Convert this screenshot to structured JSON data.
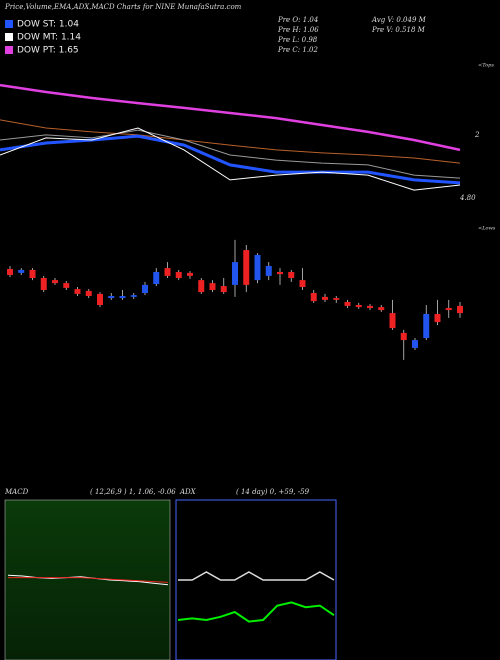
{
  "header": {
    "title": "Price,Volume,EMA,ADX,MACD Charts for NINE MunafaSutra.com",
    "info": [
      "Pre O: 1.04",
      "Pre H: 1.06",
      "Pre L: 0.98",
      "Pre C: 1.02",
      "Avg V: 0.049 M",
      "Pre V: 0.518 M"
    ],
    "legend": [
      {
        "name": "DOW ST: 1.04",
        "color": "#2255ff"
      },
      {
        "name": "DOW MT: 1.14",
        "color": "#ffffff"
      },
      {
        "name": "DOW PT: 1.65",
        "color": "#e040e0"
      }
    ]
  },
  "chart_data": [
    {
      "type": "line",
      "x": [
        0,
        4,
        8,
        12,
        16,
        20,
        24,
        28,
        32,
        36,
        40
      ],
      "xlim": [
        0,
        40
      ],
      "ylim": [
        0.8,
        1.3
      ],
      "annotations": [
        "2",
        "4.80",
        "<Tops"
      ],
      "series": [
        {
          "color": "#e040e0",
          "width": 2.5,
          "values": [
            1.233,
            1.21,
            1.19,
            1.173,
            1.157,
            1.14,
            1.123,
            1.1,
            1.077,
            1.05,
            1.017
          ]
        },
        {
          "color": "#b8602a",
          "width": 1,
          "values": [
            1.117,
            1.09,
            1.077,
            1.067,
            1.05,
            1.033,
            1.017,
            1.007,
            1.0,
            0.99,
            0.973
          ]
        },
        {
          "color": "#999999",
          "width": 1,
          "values": [
            1.05,
            1.067,
            1.057,
            1.083,
            1.05,
            1.0,
            0.983,
            0.973,
            0.967,
            0.933,
            0.923
          ]
        },
        {
          "color": "#2255ff",
          "width": 3,
          "values": [
            1.017,
            1.04,
            1.05,
            1.063,
            1.033,
            0.967,
            0.943,
            0.943,
            0.943,
            0.917,
            0.907
          ]
        },
        {
          "color": "#ffffff",
          "width": 1,
          "values": [
            1.0,
            1.057,
            1.05,
            1.09,
            1.017,
            0.917,
            0.933,
            0.943,
            0.933,
            0.883,
            0.9
          ]
        }
      ]
    },
    {
      "type": "candlestick",
      "ylim": [
        0.8,
        1.3
      ],
      "up_color": "#2255ee",
      "down_color": "#ee2222",
      "annotations": [
        "<Lows"
      ],
      "open": [
        1.17,
        1.157,
        1.167,
        1.14,
        1.133,
        1.123,
        1.103,
        1.097,
        1.087,
        1.073,
        1.073,
        1.077,
        1.09,
        1.12,
        1.173,
        1.16,
        1.157,
        1.133,
        1.123,
        1.113,
        1.117,
        1.233,
        1.133,
        1.147,
        1.16,
        1.16,
        1.133,
        1.09,
        1.077,
        1.073,
        1.06,
        1.05,
        1.047,
        1.043,
        1.023,
        0.957,
        0.907,
        0.94,
        1.02,
        1.04,
        1.047
      ],
      "high": [
        1.18,
        1.173,
        1.173,
        1.147,
        1.14,
        1.13,
        1.11,
        1.103,
        1.093,
        1.09,
        1.1,
        1.09,
        1.127,
        1.173,
        1.193,
        1.167,
        1.163,
        1.14,
        1.133,
        1.14,
        1.267,
        1.25,
        1.223,
        1.193,
        1.173,
        1.167,
        1.173,
        1.1,
        1.087,
        1.08,
        1.067,
        1.057,
        1.053,
        1.05,
        1.067,
        0.967,
        0.94,
        1.05,
        1.067,
        1.067,
        1.06
      ],
      "low": [
        1.143,
        1.15,
        1.133,
        1.093,
        1.117,
        1.1,
        1.08,
        1.073,
        1.043,
        1.067,
        1.067,
        1.07,
        1.083,
        1.113,
        1.14,
        1.133,
        1.137,
        1.087,
        1.093,
        1.087,
        1.077,
        1.093,
        1.123,
        1.133,
        1.117,
        1.127,
        1.1,
        1.057,
        1.06,
        1.057,
        1.04,
        1.037,
        1.033,
        1.027,
        0.967,
        0.867,
        0.9,
        0.933,
        0.983,
        1.007,
        1.007
      ],
      "close": [
        1.15,
        1.167,
        1.14,
        1.1,
        1.123,
        1.107,
        1.087,
        1.08,
        1.05,
        1.08,
        1.08,
        1.083,
        1.117,
        1.16,
        1.147,
        1.14,
        1.147,
        1.093,
        1.1,
        1.093,
        1.193,
        1.117,
        1.217,
        1.18,
        1.153,
        1.14,
        1.11,
        1.063,
        1.067,
        1.067,
        1.047,
        1.043,
        1.04,
        1.033,
        0.973,
        0.933,
        0.933,
        1.02,
        0.993,
        1.033,
        1.023
      ]
    },
    {
      "type": "line",
      "title": "MACD",
      "subtitle": "( 12,26,9 ) 1, 1.06, -0.06",
      "x": [
        0,
        1,
        2,
        3,
        4,
        5,
        6,
        7,
        8,
        9,
        10,
        11
      ],
      "xlim": [
        0,
        11
      ],
      "ylim": [
        -1,
        1
      ],
      "series": [
        {
          "color": "#ffffff",
          "width": 1,
          "values": [
            0.06,
            0.05,
            0.03,
            0.02,
            0.03,
            0.04,
            0.02,
            0.0,
            -0.01,
            -0.02,
            -0.04,
            -0.06
          ]
        },
        {
          "color": "#ee2222",
          "width": 1,
          "values": [
            0.03,
            0.03,
            0.03,
            0.03,
            0.03,
            0.03,
            0.02,
            0.01,
            0.0,
            -0.01,
            -0.02,
            -0.03
          ]
        }
      ]
    },
    {
      "type": "line",
      "title": "ADX",
      "subtitle": "( 14 day) 0, +59, -59",
      "x": [
        0,
        1,
        2,
        3,
        4,
        5,
        6,
        7,
        8,
        9,
        10,
        11
      ],
      "xlim": [
        0,
        11
      ],
      "ylim": [
        0,
        100
      ],
      "series": [
        {
          "color": "#dddddd",
          "width": 1.5,
          "values": [
            50,
            50,
            55,
            50,
            50,
            55,
            50,
            50,
            50,
            50,
            55,
            50
          ]
        },
        {
          "color": "#00ee00",
          "width": 2,
          "values": [
            25,
            26,
            25,
            27,
            30,
            24,
            25,
            34,
            36,
            33,
            34,
            28
          ]
        }
      ]
    }
  ]
}
